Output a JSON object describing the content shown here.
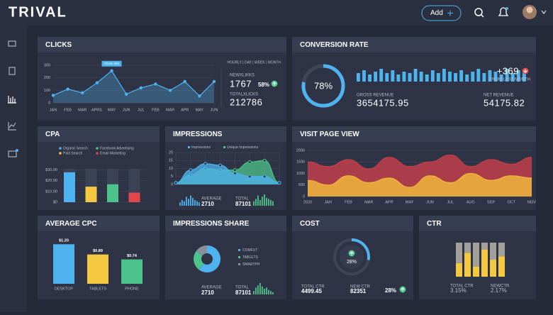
{
  "header": {
    "brand": "TRIVAL",
    "add_button": "Add"
  },
  "clicks": {
    "title": "CLICKS",
    "tooltip": "Clicks 256",
    "periods": "HOURLY | DAY | WEEK | MONTH",
    "chart_data": {
      "type": "area",
      "categories": [
        "JAN",
        "FEB",
        "MAR",
        "APRIL",
        "MAY",
        "JUN",
        "JUL",
        "FEB",
        "MAR",
        "APR",
        "MAY",
        "JUN"
      ],
      "values": [
        60,
        110,
        80,
        160,
        256,
        70,
        120,
        150,
        100,
        170,
        55,
        170
      ],
      "ylim": [
        0,
        300
      ],
      "yticks": [
        0,
        100,
        200,
        300
      ],
      "color": "#4fb3f0"
    },
    "new_label": "NEWXLIKKS",
    "new_value": 1767,
    "change": "58%",
    "total_label": "TOTALXLICKS",
    "total_value": 212786
  },
  "conversion": {
    "title": "CONVERSION RATE",
    "gauge": {
      "type": "gauge",
      "values": [
        78
      ],
      "value_labels": [
        "78%"
      ],
      "ylim": [
        0,
        100
      ],
      "color": "#4fb3f0"
    },
    "bars": {
      "type": "bar",
      "values": [
        6,
        8,
        5,
        7,
        9,
        6,
        8,
        5,
        7,
        6,
        9,
        7,
        5,
        8,
        6,
        9,
        7,
        6,
        8,
        5,
        7,
        9,
        6,
        8,
        7,
        5,
        9,
        6,
        8,
        7
      ],
      "ylim": [
        0,
        10
      ],
      "color": "#4fb3f0"
    },
    "change": "+369",
    "change_label": "FROM LAST MONTH",
    "gross_label": "GROSS REVENUE",
    "gross_value": 3654175.95,
    "net_label": "NET REVENUE",
    "net_value": 54175.82
  },
  "cpa": {
    "title": "CPA",
    "chart_data": {
      "type": "bar",
      "categories": [
        "Organic Search",
        "Paid Search",
        "Facebook Advertising",
        "Email Marketing"
      ],
      "values": [
        25,
        13,
        15,
        8
      ],
      "colors": [
        "#4fb3f0",
        "#f5c842",
        "#4cc38a",
        "#e0474c"
      ],
      "ylim": [
        0,
        35
      ],
      "yticks": [
        {
          "value": 0,
          "label": "$0"
        },
        {
          "value": 10,
          "label": "$10.00"
        },
        {
          "value": 20,
          "label": "$20.00"
        },
        {
          "value": 30,
          "label": "$30.00"
        }
      ]
    }
  },
  "impressions": {
    "title": "IMPRESSIONS",
    "chart_data": {
      "type": "area",
      "ylim": [
        0,
        20
      ],
      "yticks": [
        0,
        5,
        10,
        15,
        20
      ],
      "grid": true,
      "series": [
        {
          "name": "Impressions",
          "color": "#4fb3f0",
          "values": [
            1,
            9,
            13,
            12,
            7,
            5,
            5,
            1
          ]
        },
        {
          "name": "Unique Impressions",
          "color": "#4cc38a",
          "values": [
            1,
            6,
            10,
            9,
            9,
            14,
            15,
            1
          ]
        }
      ]
    },
    "average_label": "AVERAGE",
    "average_value": 2710,
    "total_label": "TOTAL",
    "total_value": 87101,
    "average_spark": {
      "values": [
        3,
        5,
        4,
        8,
        6,
        9,
        7,
        5,
        4,
        3
      ],
      "ylim": [
        0,
        10
      ]
    },
    "total_spark": {
      "values": [
        4,
        6,
        9,
        5,
        8,
        10,
        7,
        6,
        5,
        4
      ],
      "ylim": [
        0,
        10
      ]
    }
  },
  "visit": {
    "title": "VISIT PAGE VIEW",
    "chart_data": {
      "type": "area",
      "categories": [
        "2020",
        "JAN",
        "FEB",
        "MAR",
        "APR",
        "MAY",
        "JUN",
        "JUL",
        "AUG",
        "SEP",
        "OCT",
        "NOV"
      ],
      "ylim": [
        0,
        2000
      ],
      "yticks": [
        0,
        500,
        1000,
        1500,
        2000
      ],
      "grid": true,
      "series": [
        {
          "color": "#c0404a",
          "values": [
            1500,
            1300,
            1600,
            1200,
            1700,
            1300,
            1500,
            1800,
            1300,
            1600,
            1400,
            1700
          ]
        },
        {
          "color": "#f0b63c",
          "values": [
            700,
            500,
            900,
            600,
            800,
            400,
            900,
            600,
            1000,
            700,
            900,
            800
          ]
        }
      ]
    }
  },
  "average_cpc": {
    "title": "AVERAGE CPC",
    "chart_data": {
      "type": "bar",
      "categories": [
        "DESKTOP",
        "TABLETS",
        "PHONE"
      ],
      "values": [
        1.2,
        0.89,
        0.74
      ],
      "value_labels": [
        "$1.20",
        "$0.89",
        "$0.74"
      ],
      "colors": [
        "#4fb3f0",
        "#f5c842",
        "#4cc38a"
      ],
      "ylim": [
        0,
        1.4
      ]
    }
  },
  "impressions_share": {
    "title": "IMPRESSIONS SHARE",
    "chart_data": {
      "type": "pie",
      "categories": [
        "COMFUT",
        "TABLETS",
        "SMARTPH"
      ],
      "values": [
        60,
        25,
        15
      ],
      "colors": [
        "#4fb3f0",
        "#4cc38a",
        "#8a8f9c"
      ]
    },
    "average_label": "AVERAGE",
    "average_value": 2710,
    "total_label": "TOTAL",
    "total_value": 87101,
    "total_spark": {
      "values": [
        3,
        6,
        8,
        10,
        7,
        5,
        6,
        4,
        3,
        2
      ],
      "ylim": [
        0,
        10
      ]
    }
  },
  "cost": {
    "title": "COST",
    "gauge": {
      "type": "gauge",
      "values": [
        28
      ],
      "value_labels": [
        "28%"
      ],
      "ylim": [
        0,
        100
      ],
      "color": "#4fb3f0"
    },
    "new_label": "NEW CTR",
    "new_value": 82351,
    "total_label": "TOTAL CTR",
    "total_value": 4499.45,
    "change": "28%"
  },
  "ctr": {
    "title": "CTR",
    "chart_data": {
      "type": "stacked-bar",
      "ylim": [
        0,
        100
      ],
      "series": [
        {
          "color": "#f5c842",
          "values": [
            40,
            70,
            30,
            80,
            50,
            60
          ]
        },
        {
          "color": "#a19f97",
          "values": [
            60,
            30,
            70,
            20,
            50,
            40
          ]
        }
      ]
    },
    "total_label": "TOTAL CTR",
    "total_value": "3.15%",
    "new_label": "NEWCTR",
    "new_value": "2.17%"
  }
}
